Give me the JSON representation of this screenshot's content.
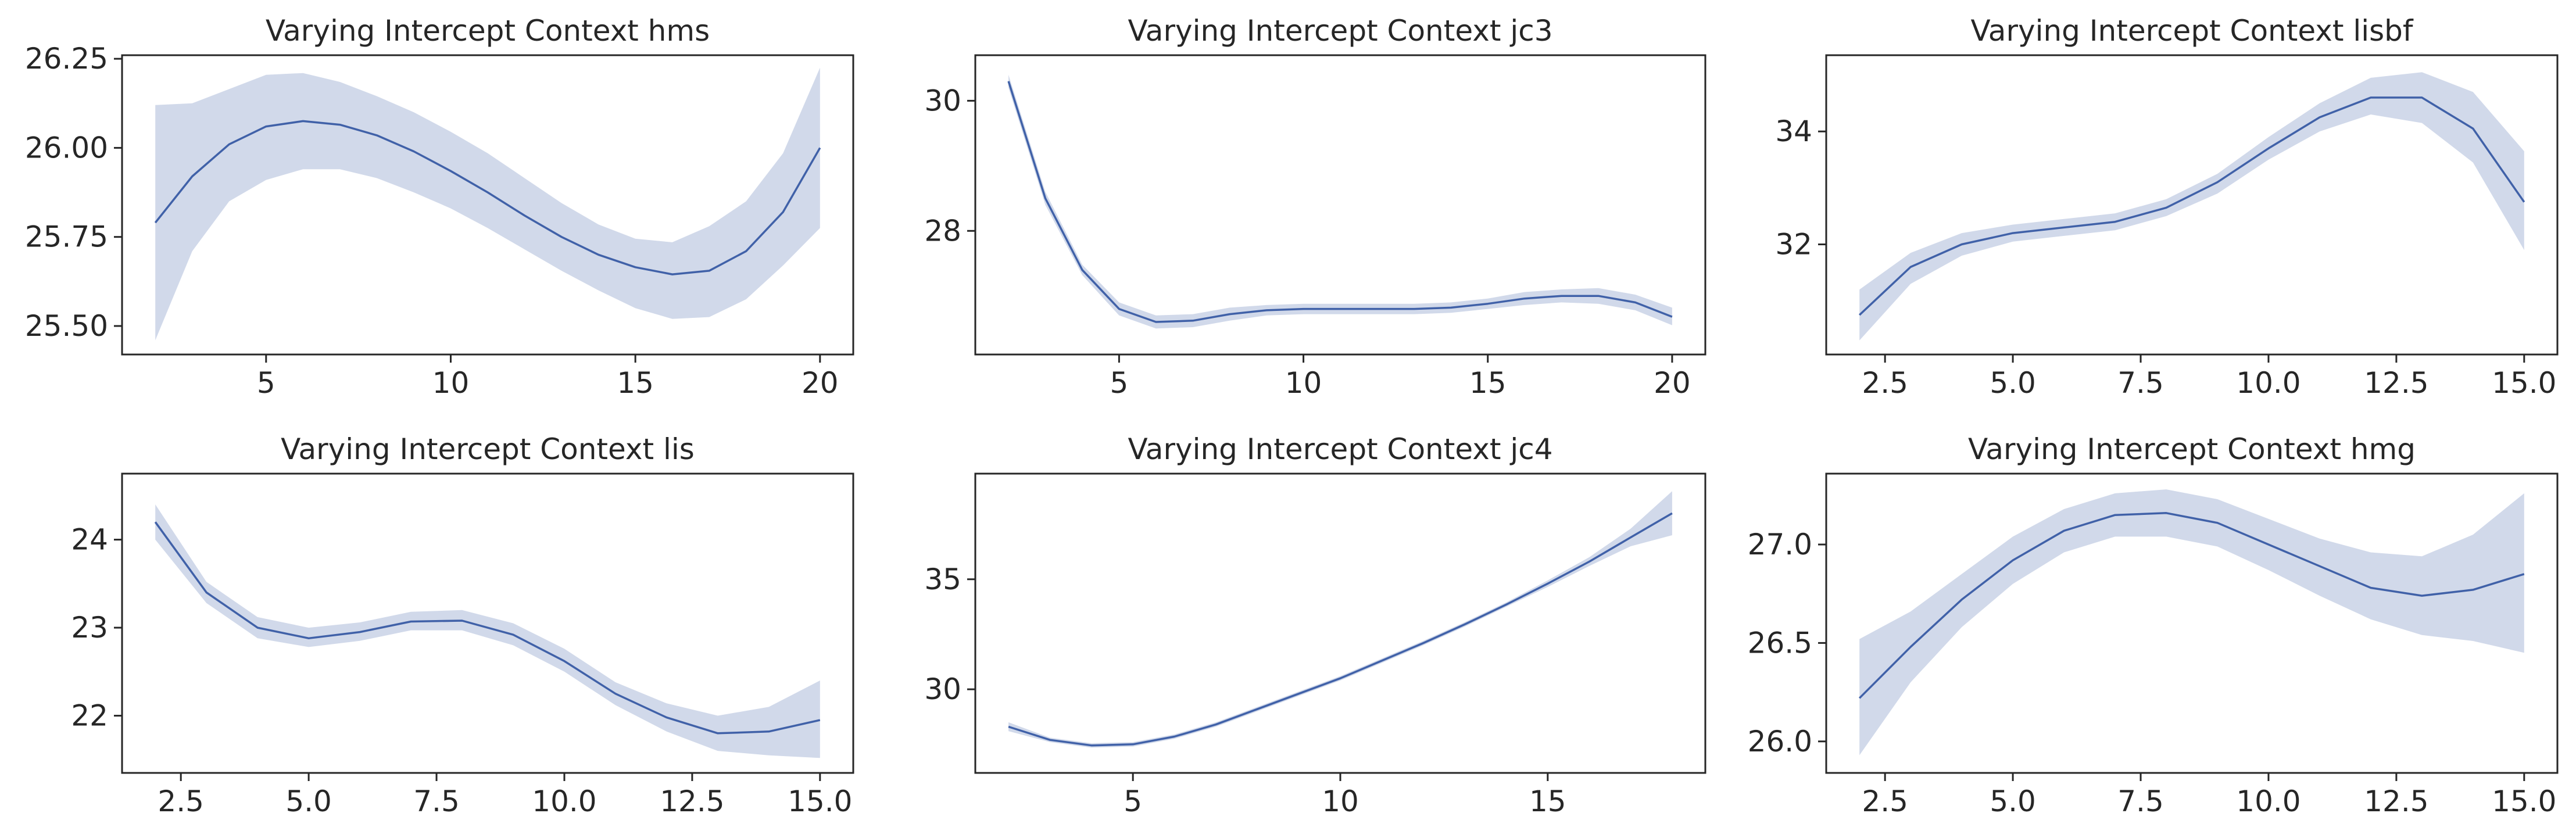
{
  "colors": {
    "line": "#4061a8",
    "band": "#d1d9ea",
    "frame": "#262626"
  },
  "chart_data": [
    {
      "type": "line",
      "title": "Varying Intercept Context hms",
      "xlim": [
        1.1,
        20.9
      ],
      "ylim": [
        25.42,
        26.26
      ],
      "xticks": [
        5,
        10,
        15,
        20
      ],
      "yticks": [
        25.5,
        25.75,
        26.0,
        26.25
      ],
      "x": [
        2,
        3,
        4,
        5,
        6,
        7,
        8,
        9,
        10,
        11,
        12,
        13,
        14,
        15,
        16,
        17,
        18,
        19,
        20
      ],
      "y": [
        25.79,
        25.92,
        26.01,
        26.06,
        26.075,
        26.065,
        26.035,
        25.99,
        25.935,
        25.875,
        25.81,
        25.75,
        25.7,
        25.665,
        25.645,
        25.655,
        25.71,
        25.82,
        26.0
      ],
      "lower": [
        25.46,
        25.71,
        25.85,
        25.91,
        25.94,
        25.94,
        25.915,
        25.875,
        25.83,
        25.775,
        25.715,
        25.655,
        25.6,
        25.55,
        25.52,
        25.525,
        25.575,
        25.67,
        25.775
      ],
      "upper": [
        26.12,
        26.125,
        26.165,
        26.205,
        26.21,
        26.185,
        26.145,
        26.1,
        26.045,
        25.985,
        25.915,
        25.845,
        25.785,
        25.745,
        25.735,
        25.78,
        25.85,
        25.985,
        26.225
      ]
    },
    {
      "type": "line",
      "title": "Varying Intercept Context jc3",
      "xlim": [
        1.1,
        20.9
      ],
      "ylim": [
        26.1,
        30.7
      ],
      "xticks": [
        5,
        10,
        15,
        20
      ],
      "yticks": [
        28,
        30
      ],
      "x": [
        2,
        3,
        4,
        5,
        6,
        7,
        8,
        9,
        10,
        11,
        12,
        13,
        14,
        15,
        16,
        17,
        18,
        19,
        20
      ],
      "y": [
        30.3,
        28.5,
        27.4,
        26.8,
        26.6,
        26.62,
        26.72,
        26.78,
        26.8,
        26.8,
        26.8,
        26.8,
        26.82,
        26.88,
        26.96,
        27.0,
        27.0,
        26.9,
        26.68
      ],
      "lower": [
        30.2,
        28.4,
        27.32,
        26.7,
        26.5,
        26.52,
        26.62,
        26.7,
        26.72,
        26.72,
        26.72,
        26.72,
        26.74,
        26.8,
        26.86,
        26.9,
        26.88,
        26.78,
        26.55
      ],
      "upper": [
        30.4,
        28.6,
        27.48,
        26.9,
        26.7,
        26.72,
        26.82,
        26.86,
        26.88,
        26.88,
        26.88,
        26.88,
        26.9,
        26.96,
        27.06,
        27.1,
        27.12,
        27.02,
        26.82
      ]
    },
    {
      "type": "line",
      "title": "Varying Intercept Context lisbf",
      "xlim": [
        1.35,
        15.65
      ],
      "ylim": [
        30.05,
        35.35
      ],
      "xticks": [
        2.5,
        5.0,
        7.5,
        10.0,
        12.5,
        15.0
      ],
      "yticks": [
        32,
        34
      ],
      "x": [
        2,
        3,
        4,
        5,
        6,
        7,
        8,
        9,
        10,
        11,
        12,
        13,
        14,
        15
      ],
      "y": [
        30.75,
        31.6,
        32.0,
        32.2,
        32.3,
        32.4,
        32.65,
        33.1,
        33.7,
        34.25,
        34.6,
        34.6,
        34.05,
        32.75
      ],
      "lower": [
        30.3,
        31.3,
        31.8,
        32.05,
        32.15,
        32.25,
        32.5,
        32.9,
        33.5,
        34.0,
        34.3,
        34.15,
        33.45,
        31.9
      ],
      "upper": [
        31.2,
        31.85,
        32.2,
        32.35,
        32.45,
        32.55,
        32.8,
        33.25,
        33.9,
        34.5,
        34.95,
        35.05,
        34.7,
        33.65
      ]
    },
    {
      "type": "line",
      "title": "Varying Intercept Context lis",
      "xlim": [
        1.35,
        15.65
      ],
      "ylim": [
        21.35,
        24.75
      ],
      "xticks": [
        2.5,
        5.0,
        7.5,
        10.0,
        12.5,
        15.0
      ],
      "yticks": [
        22,
        23,
        24
      ],
      "x": [
        2,
        3,
        4,
        5,
        6,
        7,
        8,
        9,
        10,
        11,
        12,
        13,
        14,
        15
      ],
      "y": [
        24.2,
        23.4,
        23.0,
        22.88,
        22.95,
        23.07,
        23.08,
        22.92,
        22.62,
        22.25,
        21.98,
        21.8,
        21.82,
        21.95
      ],
      "lower": [
        24.0,
        23.28,
        22.88,
        22.78,
        22.85,
        22.97,
        22.97,
        22.8,
        22.5,
        22.12,
        21.82,
        21.6,
        21.55,
        21.52
      ],
      "upper": [
        24.4,
        23.52,
        23.12,
        23.0,
        23.06,
        23.18,
        23.2,
        23.05,
        22.76,
        22.38,
        22.14,
        22.0,
        22.1,
        22.4
      ]
    },
    {
      "type": "line",
      "title": "Varying Intercept Context jc4",
      "xlim": [
        1.2,
        18.8
      ],
      "ylim": [
        26.2,
        39.8
      ],
      "xticks": [
        5,
        10,
        15
      ],
      "yticks": [
        30,
        35
      ],
      "x": [
        2,
        3,
        4,
        5,
        6,
        7,
        8,
        9,
        10,
        11,
        12,
        13,
        14,
        15,
        16,
        17,
        18
      ],
      "y": [
        28.3,
        27.7,
        27.45,
        27.5,
        27.85,
        28.4,
        29.1,
        29.8,
        30.5,
        31.3,
        32.1,
        32.95,
        33.85,
        34.8,
        35.8,
        36.9,
        38.0
      ],
      "lower": [
        28.1,
        27.6,
        27.35,
        27.4,
        27.75,
        28.3,
        29.0,
        29.7,
        30.4,
        31.2,
        32.0,
        32.85,
        33.75,
        34.65,
        35.6,
        36.5,
        37.0
      ],
      "upper": [
        28.5,
        27.8,
        27.55,
        27.6,
        27.95,
        28.5,
        29.2,
        29.9,
        30.6,
        31.4,
        32.2,
        33.05,
        33.95,
        34.95,
        36.0,
        37.3,
        39.0
      ]
    },
    {
      "type": "line",
      "title": "Varying Intercept Context hmg",
      "xlim": [
        1.35,
        15.65
      ],
      "ylim": [
        25.84,
        27.36
      ],
      "xticks": [
        2.5,
        5.0,
        7.5,
        10.0,
        12.5,
        15.0
      ],
      "yticks": [
        26.0,
        26.5,
        27.0
      ],
      "x": [
        2,
        3,
        4,
        5,
        6,
        7,
        8,
        9,
        10,
        11,
        12,
        13,
        14,
        15
      ],
      "y": [
        26.22,
        26.48,
        26.72,
        26.92,
        27.07,
        27.15,
        27.16,
        27.11,
        27.0,
        26.89,
        26.78,
        26.74,
        26.77,
        26.85
      ],
      "lower": [
        25.93,
        26.3,
        26.58,
        26.8,
        26.96,
        27.04,
        27.04,
        26.99,
        26.87,
        26.74,
        26.62,
        26.54,
        26.51,
        26.45
      ],
      "upper": [
        26.52,
        26.66,
        26.85,
        27.04,
        27.18,
        27.26,
        27.28,
        27.23,
        27.13,
        27.03,
        26.96,
        26.94,
        27.05,
        27.26
      ]
    }
  ]
}
